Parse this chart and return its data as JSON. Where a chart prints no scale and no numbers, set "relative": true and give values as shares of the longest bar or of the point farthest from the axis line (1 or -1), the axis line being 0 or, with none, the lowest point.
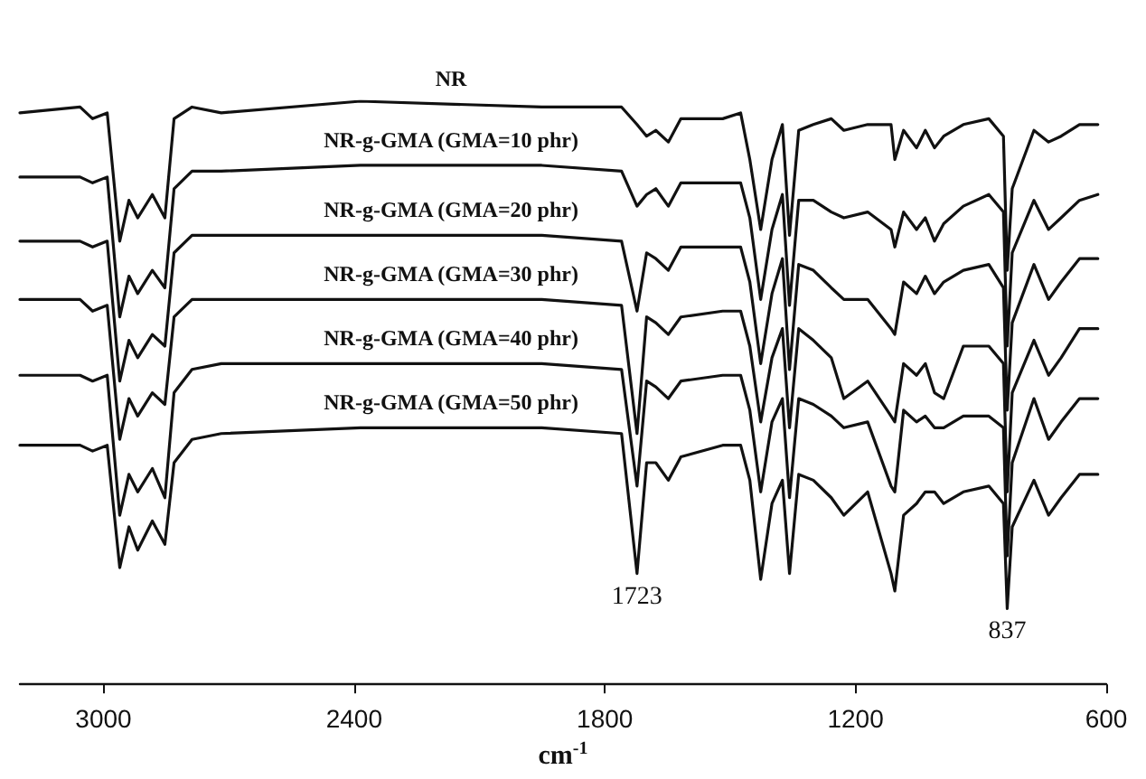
{
  "chart_data": {
    "type": "line",
    "relative": true,
    "xlabel": "cm$^{-1}$",
    "xlim": [
      3200,
      600
    ],
    "xticks": [
      3000,
      2400,
      1800,
      1200,
      600
    ],
    "tick_labels": "x",
    "marker": "none",
    "line_style": "solid",
    "legend": false,
    "x": [
      3200,
      3056,
      3026,
      2991,
      2961,
      2939,
      2918,
      2883,
      2853,
      2831,
      2788,
      2718,
      2385,
      1951,
      1760,
      1723,
      1700,
      1678,
      1648,
      1618,
      1518,
      1475,
      1453,
      1427,
      1400,
      1375,
      1358,
      1336,
      1301,
      1258,
      1228,
      1171,
      1115,
      1106,
      1085,
      1054,
      1033,
      1011,
      989,
      942,
      881,
      846,
      837,
      825,
      773,
      738,
      708,
      664,
      620
    ],
    "series": [
      {
        "name": "NR",
        "color": "#111111",
        "values": [
          0.98,
          0.99,
          0.97,
          0.98,
          0.76,
          0.83,
          0.8,
          0.84,
          0.8,
          0.97,
          0.99,
          0.98,
          1,
          0.99,
          0.99,
          0.96,
          0.94,
          0.95,
          0.93,
          0.97,
          0.97,
          0.98,
          0.9,
          0.78,
          0.9,
          0.96,
          0.77,
          0.95,
          0.96,
          0.97,
          0.95,
          0.96,
          0.96,
          0.9,
          0.95,
          0.92,
          0.95,
          0.92,
          0.94,
          0.96,
          0.97,
          0.94,
          0.71,
          0.85,
          0.95,
          0.93,
          0.94,
          0.96,
          0.96
        ]
      },
      {
        "name": "NR-g-GMA (GMA=10 phr)",
        "color": "#111111",
        "values": [
          0.87,
          0.87,
          0.86,
          0.87,
          0.63,
          0.7,
          0.67,
          0.71,
          0.68,
          0.85,
          0.88,
          0.88,
          0.89,
          0.89,
          0.88,
          0.82,
          0.84,
          0.85,
          0.82,
          0.86,
          0.86,
          0.86,
          0.8,
          0.66,
          0.78,
          0.84,
          0.65,
          0.83,
          0.83,
          0.81,
          0.8,
          0.81,
          0.78,
          0.75,
          0.81,
          0.78,
          0.8,
          0.76,
          0.79,
          0.82,
          0.84,
          0.81,
          0.58,
          0.74,
          0.83,
          0.78,
          0.8,
          0.83,
          0.84
        ]
      },
      {
        "name": "NR-g-GMA (GMA=20 phr)",
        "color": "#111111",
        "values": [
          0.76,
          0.76,
          0.75,
          0.76,
          0.52,
          0.59,
          0.56,
          0.6,
          0.58,
          0.74,
          0.77,
          0.77,
          0.77,
          0.77,
          0.76,
          0.64,
          0.74,
          0.73,
          0.71,
          0.75,
          0.75,
          0.75,
          0.69,
          0.55,
          0.67,
          0.73,
          0.54,
          0.72,
          0.71,
          0.68,
          0.66,
          0.66,
          0.61,
          0.6,
          0.69,
          0.67,
          0.7,
          0.67,
          0.69,
          0.71,
          0.72,
          0.68,
          0.47,
          0.62,
          0.72,
          0.66,
          0.69,
          0.73,
          0.73
        ]
      },
      {
        "name": "NR-g-GMA (GMA=30 phr)",
        "color": "#111111",
        "values": [
          0.66,
          0.66,
          0.64,
          0.65,
          0.42,
          0.49,
          0.46,
          0.5,
          0.48,
          0.63,
          0.66,
          0.66,
          0.66,
          0.66,
          0.65,
          0.43,
          0.63,
          0.62,
          0.6,
          0.63,
          0.64,
          0.64,
          0.58,
          0.45,
          0.56,
          0.61,
          0.44,
          0.61,
          0.59,
          0.56,
          0.49,
          0.52,
          0.46,
          0.45,
          0.55,
          0.53,
          0.55,
          0.5,
          0.49,
          0.58,
          0.58,
          0.55,
          0.33,
          0.5,
          0.59,
          0.53,
          0.56,
          0.61,
          0.61
        ]
      },
      {
        "name": "NR-g-GMA (GMA=40 phr)",
        "color": "#111111",
        "values": [
          0.53,
          0.53,
          0.52,
          0.53,
          0.29,
          0.36,
          0.33,
          0.37,
          0.32,
          0.5,
          0.54,
          0.55,
          0.55,
          0.55,
          0.54,
          0.34,
          0.52,
          0.51,
          0.49,
          0.52,
          0.53,
          0.53,
          0.47,
          0.33,
          0.45,
          0.49,
          0.32,
          0.49,
          0.48,
          0.46,
          0.44,
          0.45,
          0.34,
          0.33,
          0.47,
          0.45,
          0.46,
          0.44,
          0.44,
          0.46,
          0.46,
          0.44,
          0.22,
          0.38,
          0.49,
          0.42,
          0.45,
          0.49,
          0.49
        ]
      },
      {
        "name": "NR-g-GMA (GMA=50 phr)",
        "color": "#111111",
        "values": [
          0.41,
          0.41,
          0.4,
          0.41,
          0.2,
          0.27,
          0.23,
          0.28,
          0.24,
          0.38,
          0.42,
          0.43,
          0.44,
          0.44,
          0.43,
          0.19,
          0.38,
          0.38,
          0.35,
          0.39,
          0.41,
          0.41,
          0.35,
          0.18,
          0.31,
          0.35,
          0.19,
          0.36,
          0.35,
          0.32,
          0.29,
          0.33,
          0.19,
          0.16,
          0.29,
          0.31,
          0.33,
          0.33,
          0.31,
          0.33,
          0.34,
          0.31,
          0.13,
          0.27,
          0.35,
          0.29,
          0.32,
          0.36,
          0.36
        ]
      }
    ],
    "annotations": [
      {
        "text": "1723",
        "x": 1723,
        "y": 0.19
      },
      {
        "text": "837",
        "x": 837,
        "y": 0.13
      }
    ]
  }
}
